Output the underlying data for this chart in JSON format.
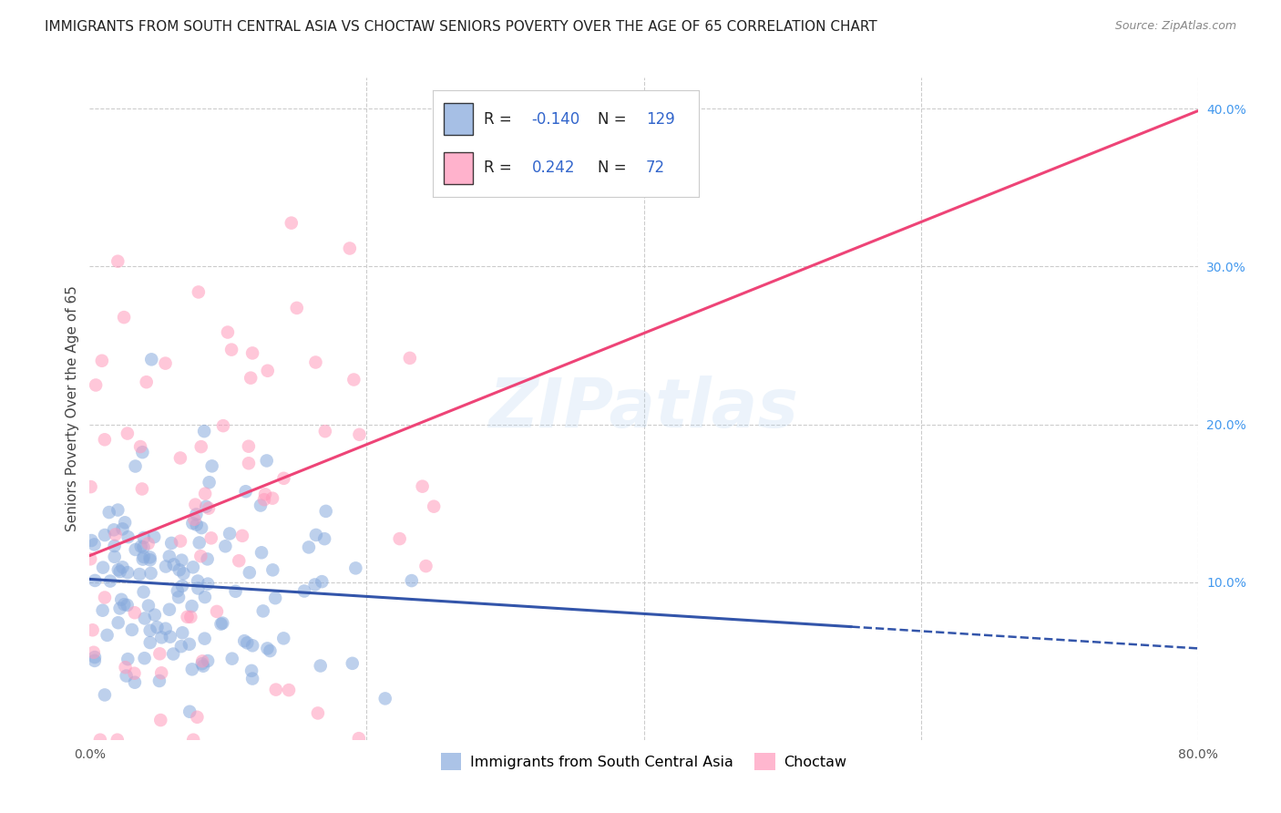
{
  "title": "IMMIGRANTS FROM SOUTH CENTRAL ASIA VS CHOCTAW SENIORS POVERTY OVER THE AGE OF 65 CORRELATION CHART",
  "source": "Source: ZipAtlas.com",
  "ylabel": "Seniors Poverty Over the Age of 65",
  "xlim": [
    0,
    0.8
  ],
  "ylim": [
    0,
    0.42
  ],
  "yticks_right": [
    0.1,
    0.2,
    0.3,
    0.4
  ],
  "ytick_right_labels": [
    "10.0%",
    "20.0%",
    "30.0%",
    "40.0%"
  ],
  "blue_color": "#88AADD",
  "pink_color": "#FF99BB",
  "blue_line_color": "#3355AA",
  "pink_line_color": "#EE4477",
  "blue_R": -0.14,
  "blue_N": 129,
  "pink_R": 0.242,
  "pink_N": 72,
  "legend_blue_label": "Immigrants from South Central Asia",
  "legend_pink_label": "Choctaw",
  "background_color": "#ffffff",
  "grid_color": "#cccccc",
  "title_fontsize": 11,
  "axis_label_fontsize": 11,
  "watermark_color": "#AACCEE",
  "right_tick_color": "#4499EE"
}
